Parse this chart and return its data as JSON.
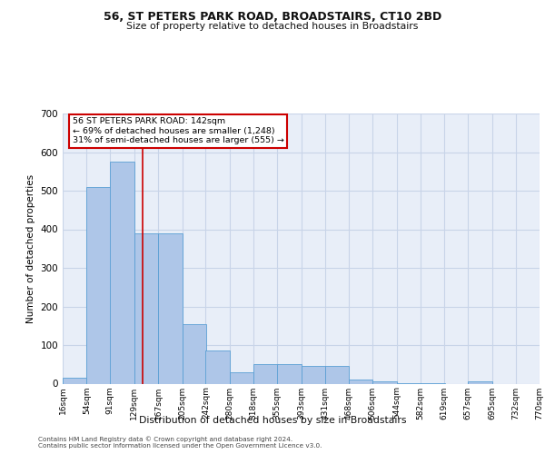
{
  "title1": "56, ST PETERS PARK ROAD, BROADSTAIRS, CT10 2BD",
  "title2": "Size of property relative to detached houses in Broadstairs",
  "xlabel": "Distribution of detached houses by size in Broadstairs",
  "ylabel": "Number of detached properties",
  "bin_edges": [
    16,
    54,
    91,
    129,
    167,
    205,
    242,
    280,
    318,
    355,
    393,
    431,
    468,
    506,
    544,
    582,
    619,
    657,
    695,
    732,
    770
  ],
  "bin_labels": [
    "16sqm",
    "54sqm",
    "91sqm",
    "129sqm",
    "167sqm",
    "205sqm",
    "242sqm",
    "280sqm",
    "318sqm",
    "355sqm",
    "393sqm",
    "431sqm",
    "468sqm",
    "506sqm",
    "544sqm",
    "582sqm",
    "619sqm",
    "657sqm",
    "695sqm",
    "732sqm",
    "770sqm"
  ],
  "bar_heights": [
    15,
    510,
    575,
    390,
    390,
    155,
    85,
    30,
    50,
    50,
    45,
    45,
    10,
    5,
    2,
    1,
    0,
    5,
    0,
    0
  ],
  "bar_color": "#aec6e8",
  "bar_edge_color": "#5a9fd4",
  "grid_color": "#c8d4e8",
  "bg_color": "#e8eef8",
  "property_line_x": 142,
  "property_line_color": "#cc0000",
  "annotation_line1": "56 ST PETERS PARK ROAD: 142sqm",
  "annotation_line2": "← 69% of detached houses are smaller (1,248)",
  "annotation_line3": "31% of semi-detached houses are larger (555) →",
  "annotation_box_color": "#cc0000",
  "ylim": [
    0,
    700
  ],
  "yticks": [
    0,
    100,
    200,
    300,
    400,
    500,
    600,
    700
  ],
  "footer1": "Contains HM Land Registry data © Crown copyright and database right 2024.",
  "footer2": "Contains public sector information licensed under the Open Government Licence v3.0."
}
